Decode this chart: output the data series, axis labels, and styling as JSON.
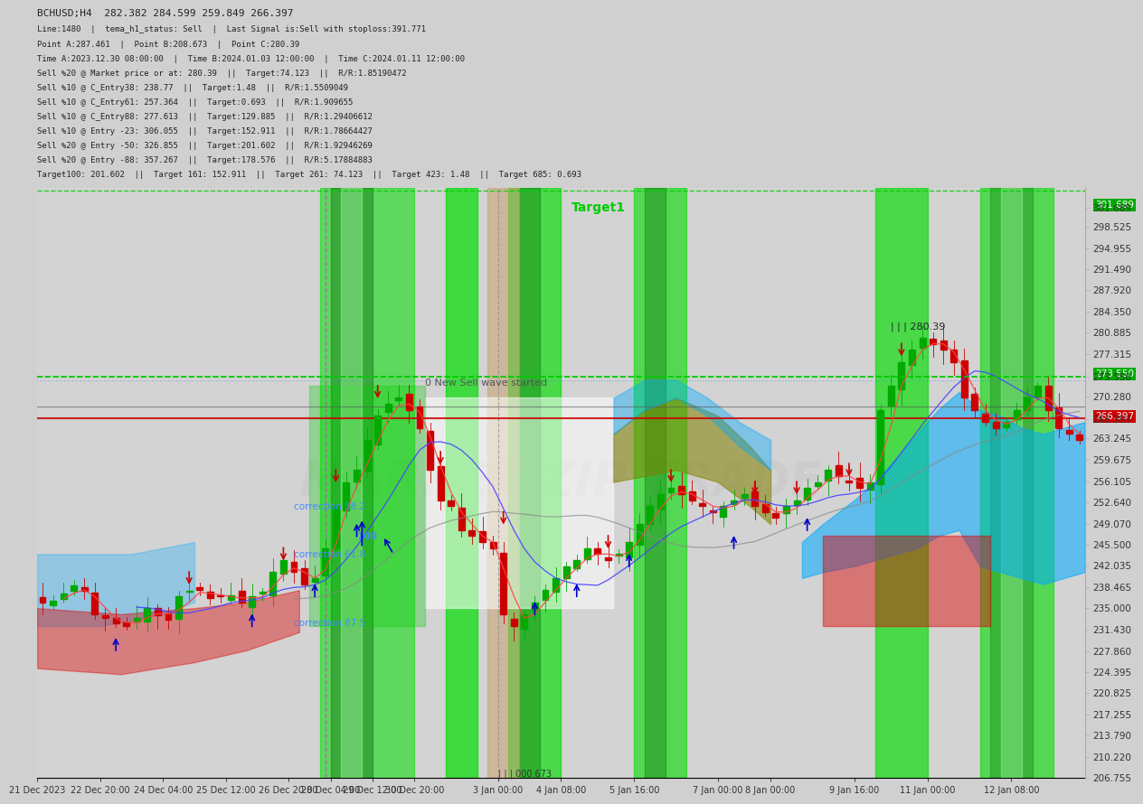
{
  "title": "BCHUSD;H4  282.382 284.599 259.849 266.397",
  "subtitle_lines": [
    "Line:1480  |  tema_h1_status: Sell  |  Last Signal is:Sell with stoploss:391.771",
    "Point A:287.461  |  Point B:208.673  |  Point C:280.39",
    "Time A:2023.12.30 08:00:00  |  Time B:2024.01.03 12:00:00  |  Time C:2024.01.11 12:00:00",
    "Sell %20 @ Market price or at: 280.39  ||  Target:74.123  ||  R/R:1.85190472",
    "Sell %10 @ C_Entry38: 238.77  ||  Target:1.48  ||  R/R:1.5509049",
    "Sell %10 @ C_Entry61: 257.364  ||  Target:0.693  ||  R/R:1.909655",
    "Sell %10 @ C_Entry88: 277.613  ||  Target:129.885  ||  R/R:1.29406612",
    "Sell %10 @ Entry -23: 306.055  ||  Target:152.911  ||  R/R:1.78664427",
    "Sell %20 @ Entry -50: 326.855  ||  Target:201.602  ||  R/R:1.92946269",
    "Sell %20 @ Entry -88: 357.267  ||  Target:178.576  ||  R/R:5.17884883",
    "Target100: 201.602  ||  Target 161: 152.911  ||  Target 261: 74.123  ||  Target 423: 1.48  ||  Target 685: 0.693"
  ],
  "y_min": 206.755,
  "y_max": 305.0,
  "price_labels": [
    301.689,
    298.525,
    294.955,
    291.49,
    287.92,
    284.35,
    280.885,
    277.315,
    273.55,
    270.28,
    266.397,
    263.245,
    259.675,
    256.105,
    252.64,
    249.07,
    245.5,
    242.035,
    238.465,
    235.0,
    231.43,
    227.86,
    224.395,
    220.825,
    217.255,
    213.79,
    210.22,
    206.755
  ],
  "x_labels": [
    "21 Dec 2023",
    "22 Dec 20:00",
    "24 Dec 04:00",
    "25 Dec 12:00",
    "26 Dec 20:00",
    "28 Dec 04:00",
    "29 Dec 12:00",
    "30 Dec 20:00",
    "3 Jan 00:00",
    "4 Jan 08:00",
    "5 Jan 16:00",
    "7 Jan 00:00",
    "8 Jan 00:00",
    "9 Jan 16:00",
    "11 Jan 00:00",
    "12 Jan 08:00"
  ],
  "bg_color": "#d0d0d0",
  "plot_bg": "#d3d3d3",
  "green_band_color": "#00cc00",
  "dark_green_color": "#008800",
  "light_green_color": "#88ff88",
  "tan_color": "#c8a070",
  "blue_color": "#00aaff",
  "red_color": "#ff0000",
  "dark_red_color": "#cc0000",
  "olive_color": "#808000",
  "current_price": 266.397,
  "highlighted_price1": 273.55,
  "highlighted_price2": 301.689,
  "text_color": "#00cc00",
  "annotation_color": "#00aa00",
  "watermark": "MARKET ZIP TRADE"
}
